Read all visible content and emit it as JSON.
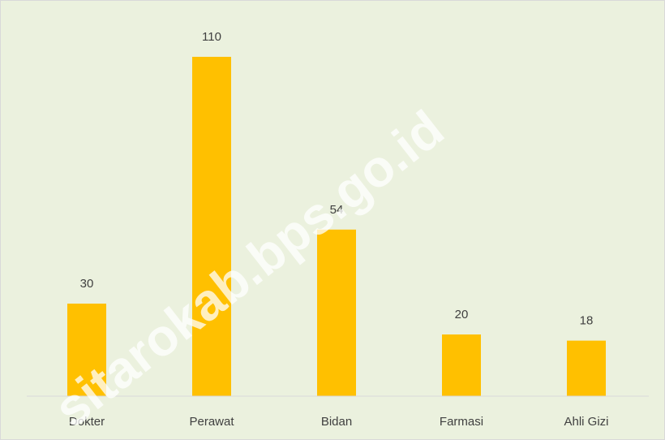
{
  "chart_data": {
    "type": "bar",
    "categories": [
      "Dokter",
      "Perawat",
      "Bidan",
      "Farmasi",
      "Ahli Gizi"
    ],
    "values": [
      30,
      110,
      54,
      20,
      18
    ],
    "color": "#ffc000",
    "watermark": "sitarokab.bps.go.id"
  }
}
